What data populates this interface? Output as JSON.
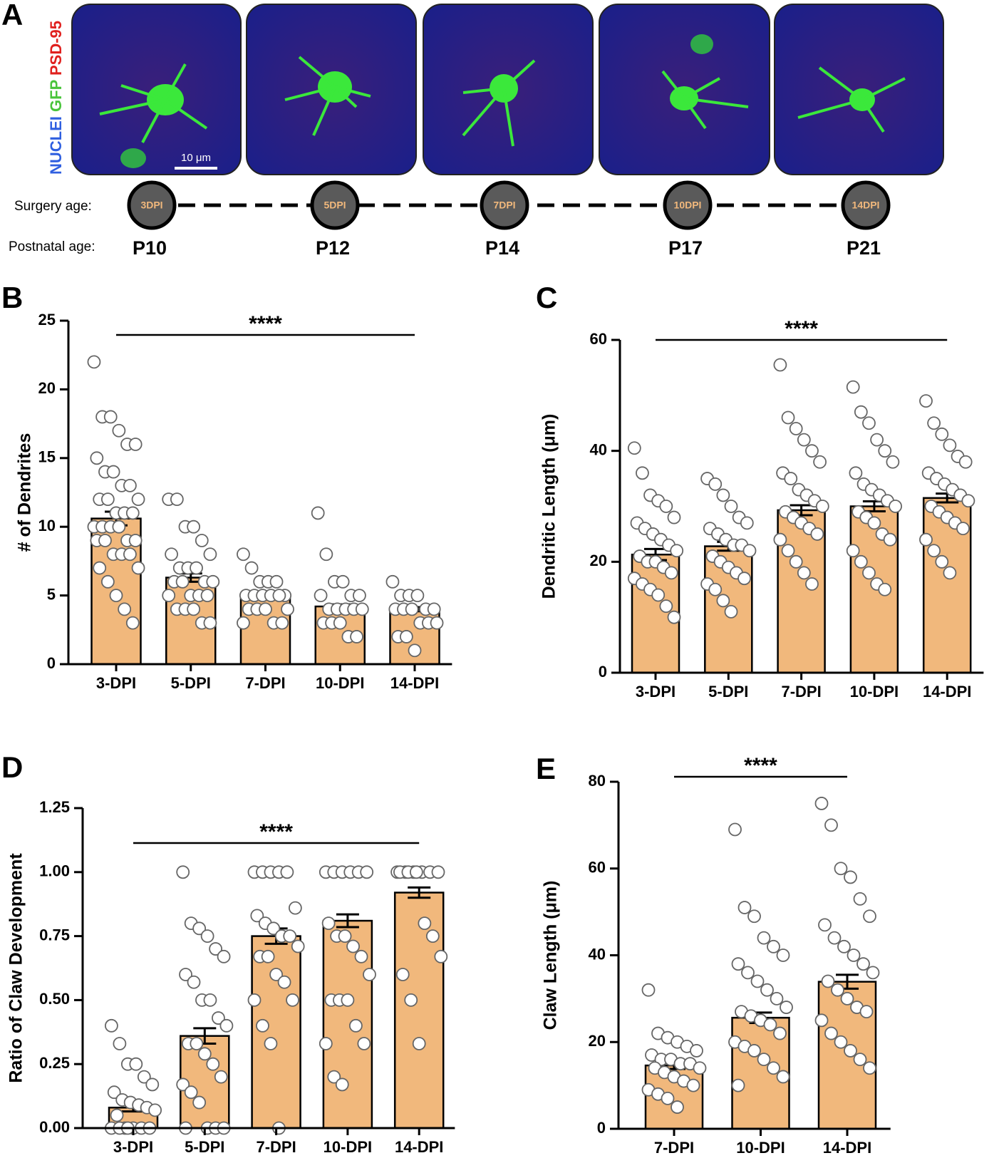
{
  "panel_a": {
    "label": "A",
    "channels": [
      {
        "name": "NUCLEI",
        "color": "#2f5fe0"
      },
      {
        "name": "GFP",
        "color": "#49c43b"
      },
      {
        "name": "PSD-95",
        "color": "#e0201e"
      }
    ],
    "scale_bar": "10 μm",
    "surgery_label": "Surgery age:",
    "surgery_ages": [
      "3DPI",
      "5DPI",
      "7DPI",
      "10DPI",
      "14DPI"
    ],
    "postnatal_label": "Postnatal age:",
    "postnatal_ages": [
      "P10",
      "P12",
      "P14",
      "P17",
      "P21"
    ]
  },
  "chart_data": [
    {
      "type": "bar",
      "panel": "B",
      "ylabel": "# of Dendrites",
      "annotation": "****",
      "color": "#f1b87c",
      "categories": [
        "3-DPI",
        "5-DPI",
        "7-DPI",
        "10-DPI",
        "14-DPI"
      ],
      "values": [
        10.6,
        6.3,
        5.1,
        4.2,
        4.0
      ],
      "errors": [
        0.5,
        0.3,
        0.15,
        0.15,
        0.15
      ],
      "points": [
        [
          22,
          18,
          18,
          17,
          16,
          16,
          15,
          14,
          14,
          13,
          13,
          12,
          12,
          12,
          11,
          11,
          11,
          10,
          10,
          10,
          10,
          9,
          9,
          9,
          9,
          8,
          8,
          8,
          7,
          7,
          6,
          5,
          4,
          3
        ],
        [
          12,
          12,
          10,
          10,
          9,
          8,
          8,
          7,
          7,
          7,
          6,
          6,
          6,
          6,
          5,
          5,
          5,
          5,
          4,
          4,
          4,
          3,
          3
        ],
        [
          8,
          7,
          6,
          6,
          6,
          5,
          5,
          5,
          5,
          5,
          5,
          4,
          4,
          4,
          4,
          3,
          3,
          3
        ],
        [
          11,
          8,
          6,
          6,
          5,
          5,
          5,
          4,
          4,
          4,
          4,
          4,
          3,
          3,
          3,
          2,
          2
        ],
        [
          6,
          5,
          5,
          5,
          4,
          4,
          4,
          4,
          4,
          3,
          3,
          3,
          2,
          2,
          1
        ]
      ],
      "ylim": [
        0,
        25
      ],
      "yticks": [
        0,
        5,
        10,
        15,
        20,
        25
      ]
    },
    {
      "type": "bar",
      "panel": "C",
      "ylabel": "Dendritic Length (μm)",
      "annotation": "****",
      "color": "#f1b87c",
      "categories": [
        "3-DPI",
        "5-DPI",
        "7-DPI",
        "10-DPI",
        "14-DPI"
      ],
      "values": [
        21.3,
        22.8,
        29.3,
        30.0,
        31.5
      ],
      "errors": [
        1.0,
        0.8,
        0.9,
        0.9,
        0.8
      ],
      "points": [
        [
          40.5,
          36,
          32,
          31,
          30,
          28,
          27,
          26,
          25,
          24,
          23,
          22,
          21,
          20,
          20,
          19,
          18,
          17,
          16,
          15,
          14,
          12,
          10
        ],
        [
          35,
          34,
          32,
          30,
          28,
          27,
          26,
          25,
          24,
          23,
          23,
          22,
          21,
          20,
          19,
          18,
          17,
          16,
          15,
          13,
          11
        ],
        [
          55.5,
          46,
          44,
          42,
          40,
          38,
          36,
          35,
          33,
          32,
          31,
          30,
          29,
          28,
          27,
          26,
          25,
          24,
          22,
          20,
          18,
          16
        ],
        [
          51.5,
          47,
          45,
          42,
          40,
          38,
          36,
          34,
          33,
          32,
          31,
          30,
          29,
          28,
          27,
          25,
          24,
          22,
          20,
          18,
          16,
          15
        ],
        [
          49,
          45,
          43,
          41,
          39,
          38,
          36,
          35,
          34,
          33,
          32,
          31,
          30,
          29,
          28,
          27,
          26,
          24,
          22,
          20,
          18
        ]
      ],
      "ylim": [
        0,
        60
      ],
      "yticks": [
        0,
        20,
        40,
        60
      ]
    },
    {
      "type": "bar",
      "panel": "D",
      "ylabel": "Ratio of Claw Development",
      "annotation": "****",
      "color": "#f1b87c",
      "categories": [
        "3-DPI",
        "5-DPI",
        "7-DPI",
        "10-DPI",
        "14-DPI"
      ],
      "values": [
        0.08,
        0.36,
        0.75,
        0.81,
        0.92
      ],
      "errors": [
        0.015,
        0.03,
        0.03,
        0.025,
        0.02
      ],
      "points": [
        [
          0.4,
          0.33,
          0.25,
          0.25,
          0.2,
          0.17,
          0.14,
          0.11,
          0.1,
          0.09,
          0.08,
          0.07,
          0.05,
          0,
          0,
          0,
          0,
          0,
          0,
          0
        ],
        [
          1,
          0.8,
          0.78,
          0.75,
          0.7,
          0.67,
          0.6,
          0.57,
          0.5,
          0.5,
          0.43,
          0.4,
          0.33,
          0.33,
          0.29,
          0.25,
          0.2,
          0.17,
          0.14,
          0.1,
          0,
          0,
          0,
          0
        ],
        [
          1,
          1,
          1,
          1,
          1,
          0.86,
          0.83,
          0.8,
          0.78,
          0.75,
          0.75,
          0.71,
          0.67,
          0.67,
          0.6,
          0.57,
          0.5,
          0.5,
          0.4,
          0.33,
          0
        ],
        [
          1,
          1,
          1,
          1,
          1,
          1,
          0.8,
          0.75,
          0.75,
          0.71,
          0.67,
          0.6,
          0.5,
          0.5,
          0.5,
          0.4,
          0.33,
          0.33,
          0.2,
          0.17
        ],
        [
          1,
          1,
          1,
          1,
          1,
          1,
          1,
          1,
          1,
          0.8,
          0.75,
          0.67,
          0.6,
          0.5,
          0.33
        ]
      ],
      "ylim": [
        0,
        1.25
      ],
      "yticks": [
        {
          "value": 0,
          "label": "0.00"
        },
        0.25,
        {
          "value": 0.5,
          "label": "0.50"
        },
        0.75,
        {
          "value": 1,
          "label": "1.00"
        },
        1.25
      ]
    },
    {
      "type": "bar",
      "panel": "E",
      "ylabel": "Claw Length (μm)",
      "annotation": "****",
      "color": "#f1b87c",
      "categories": [
        "7-DPI",
        "10-DPI",
        "14-DPI"
      ],
      "values": [
        14.6,
        25.6,
        33.9
      ],
      "errors": [
        0.8,
        1.2,
        1.6
      ],
      "points": [
        [
          32,
          22,
          21,
          20,
          19,
          18,
          17,
          16,
          16,
          15,
          15,
          14,
          14,
          13,
          12,
          11,
          10,
          9,
          8,
          7,
          5
        ],
        [
          69,
          51,
          49,
          44,
          42,
          40,
          38,
          36,
          34,
          32,
          30,
          28,
          27,
          26,
          25,
          24,
          22,
          20,
          19,
          18,
          16,
          14,
          12,
          10
        ],
        [
          75,
          70,
          60,
          58,
          53,
          49,
          47,
          44,
          42,
          40,
          38,
          36,
          34,
          32,
          30,
          28,
          27,
          25,
          22,
          20,
          18,
          16,
          14
        ]
      ],
      "ylim": [
        0,
        80
      ],
      "yticks": [
        0,
        20,
        40,
        60,
        80
      ]
    }
  ]
}
